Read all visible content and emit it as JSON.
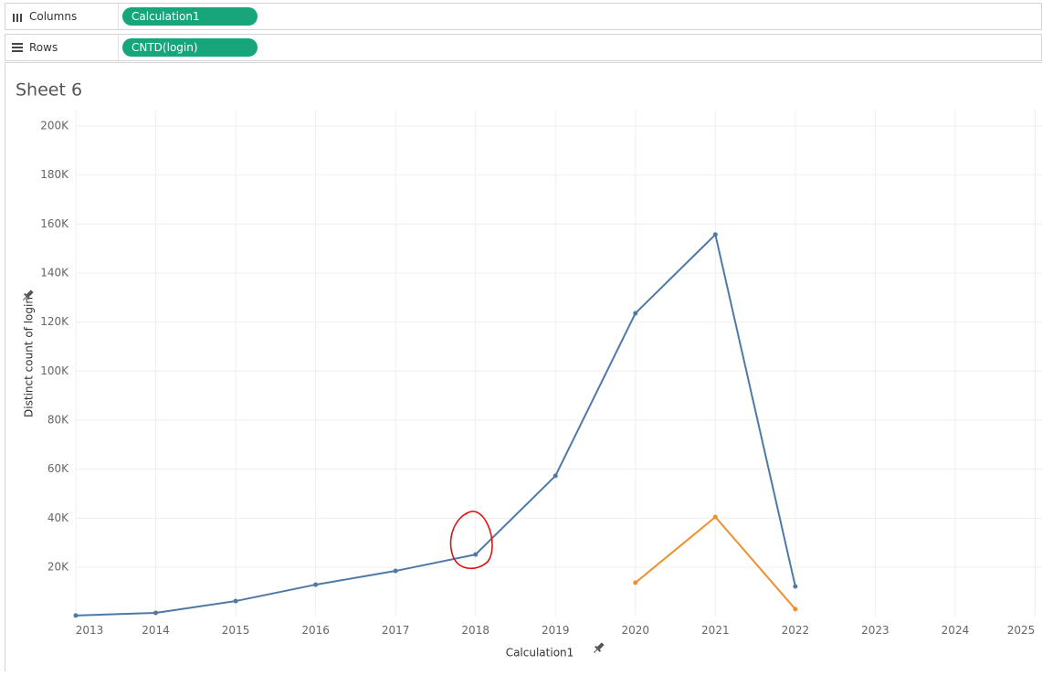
{
  "shelves": [
    {
      "label": "Columns",
      "pill": "Calculation1"
    },
    {
      "label": "Rows",
      "pill": "CNTD(login)"
    }
  ],
  "chart_data": {
    "type": "line",
    "title": "Sheet 6",
    "x_label": "Calculation1",
    "y_label": "Distinct count of login",
    "x": [
      2013,
      2014,
      2015,
      2016,
      2017,
      2018,
      2019,
      2020,
      2021,
      2022
    ],
    "series": [
      {
        "color": "#4e79a7",
        "values": [
          300,
          1400,
          6200,
          12900,
          18500,
          25200,
          57300,
          123600,
          155700,
          12200
        ]
      },
      {
        "color": "#f28e2b",
        "values": [
          null,
          null,
          null,
          null,
          null,
          null,
          null,
          13700,
          40500,
          2900
        ]
      }
    ],
    "xlim": [
      2013,
      2025
    ],
    "xticks": [
      2013,
      2014,
      2015,
      2016,
      2017,
      2018,
      2019,
      2020,
      2021,
      2022,
      2023,
      2024,
      2025
    ],
    "ylim": [
      0,
      206300
    ],
    "yticks": [
      {
        "value": 20000,
        "label": "20K"
      },
      {
        "value": 40000,
        "label": "40K"
      },
      {
        "value": 60000,
        "label": "60K"
      },
      {
        "value": 80000,
        "label": "80K"
      },
      {
        "value": 100000,
        "label": "100K"
      },
      {
        "value": 120000,
        "label": "120K"
      },
      {
        "value": 140000,
        "label": "140K"
      },
      {
        "value": 160000,
        "label": "160K"
      },
      {
        "value": 180000,
        "label": "180K"
      },
      {
        "value": 200000,
        "label": "200K"
      }
    ],
    "grid": true
  }
}
